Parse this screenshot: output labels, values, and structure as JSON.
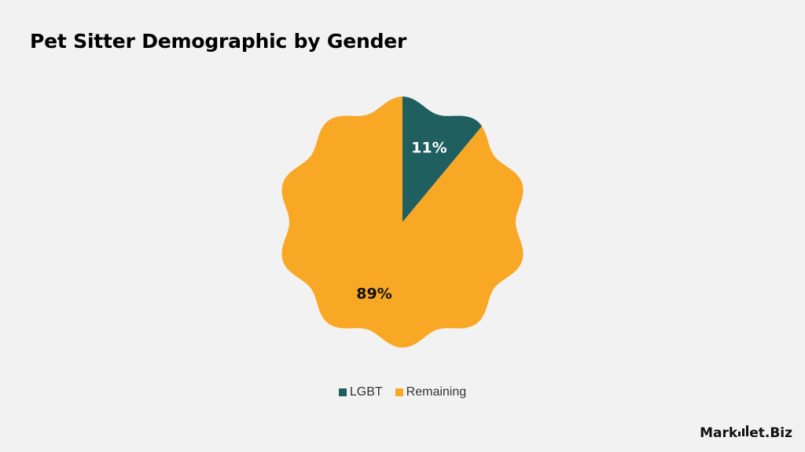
{
  "title": "Pet Sitter Demographic by Gender",
  "chart_data": {
    "type": "pie",
    "title": "Pet Sitter Demographic by Gender",
    "slices": [
      {
        "label": "LGBT",
        "value": 11,
        "display": "11%",
        "color": "#1f5f60",
        "label_color": "#ffffff"
      },
      {
        "label": "Remaining",
        "value": 89,
        "display": "89%",
        "color": "#f9a826",
        "label_color": "#111111"
      }
    ],
    "unit": "%",
    "legend_position": "bottom-center",
    "shape": "scalloped-circle"
  },
  "legend": {
    "items": [
      {
        "label": "LGBT",
        "color": "#1f5f60"
      },
      {
        "label": "Remaining",
        "color": "#f9a826"
      }
    ]
  },
  "logo": {
    "text_before": "Mark",
    "text_after": "et.Biz"
  },
  "colors": {
    "background": "#f2f2f2"
  }
}
